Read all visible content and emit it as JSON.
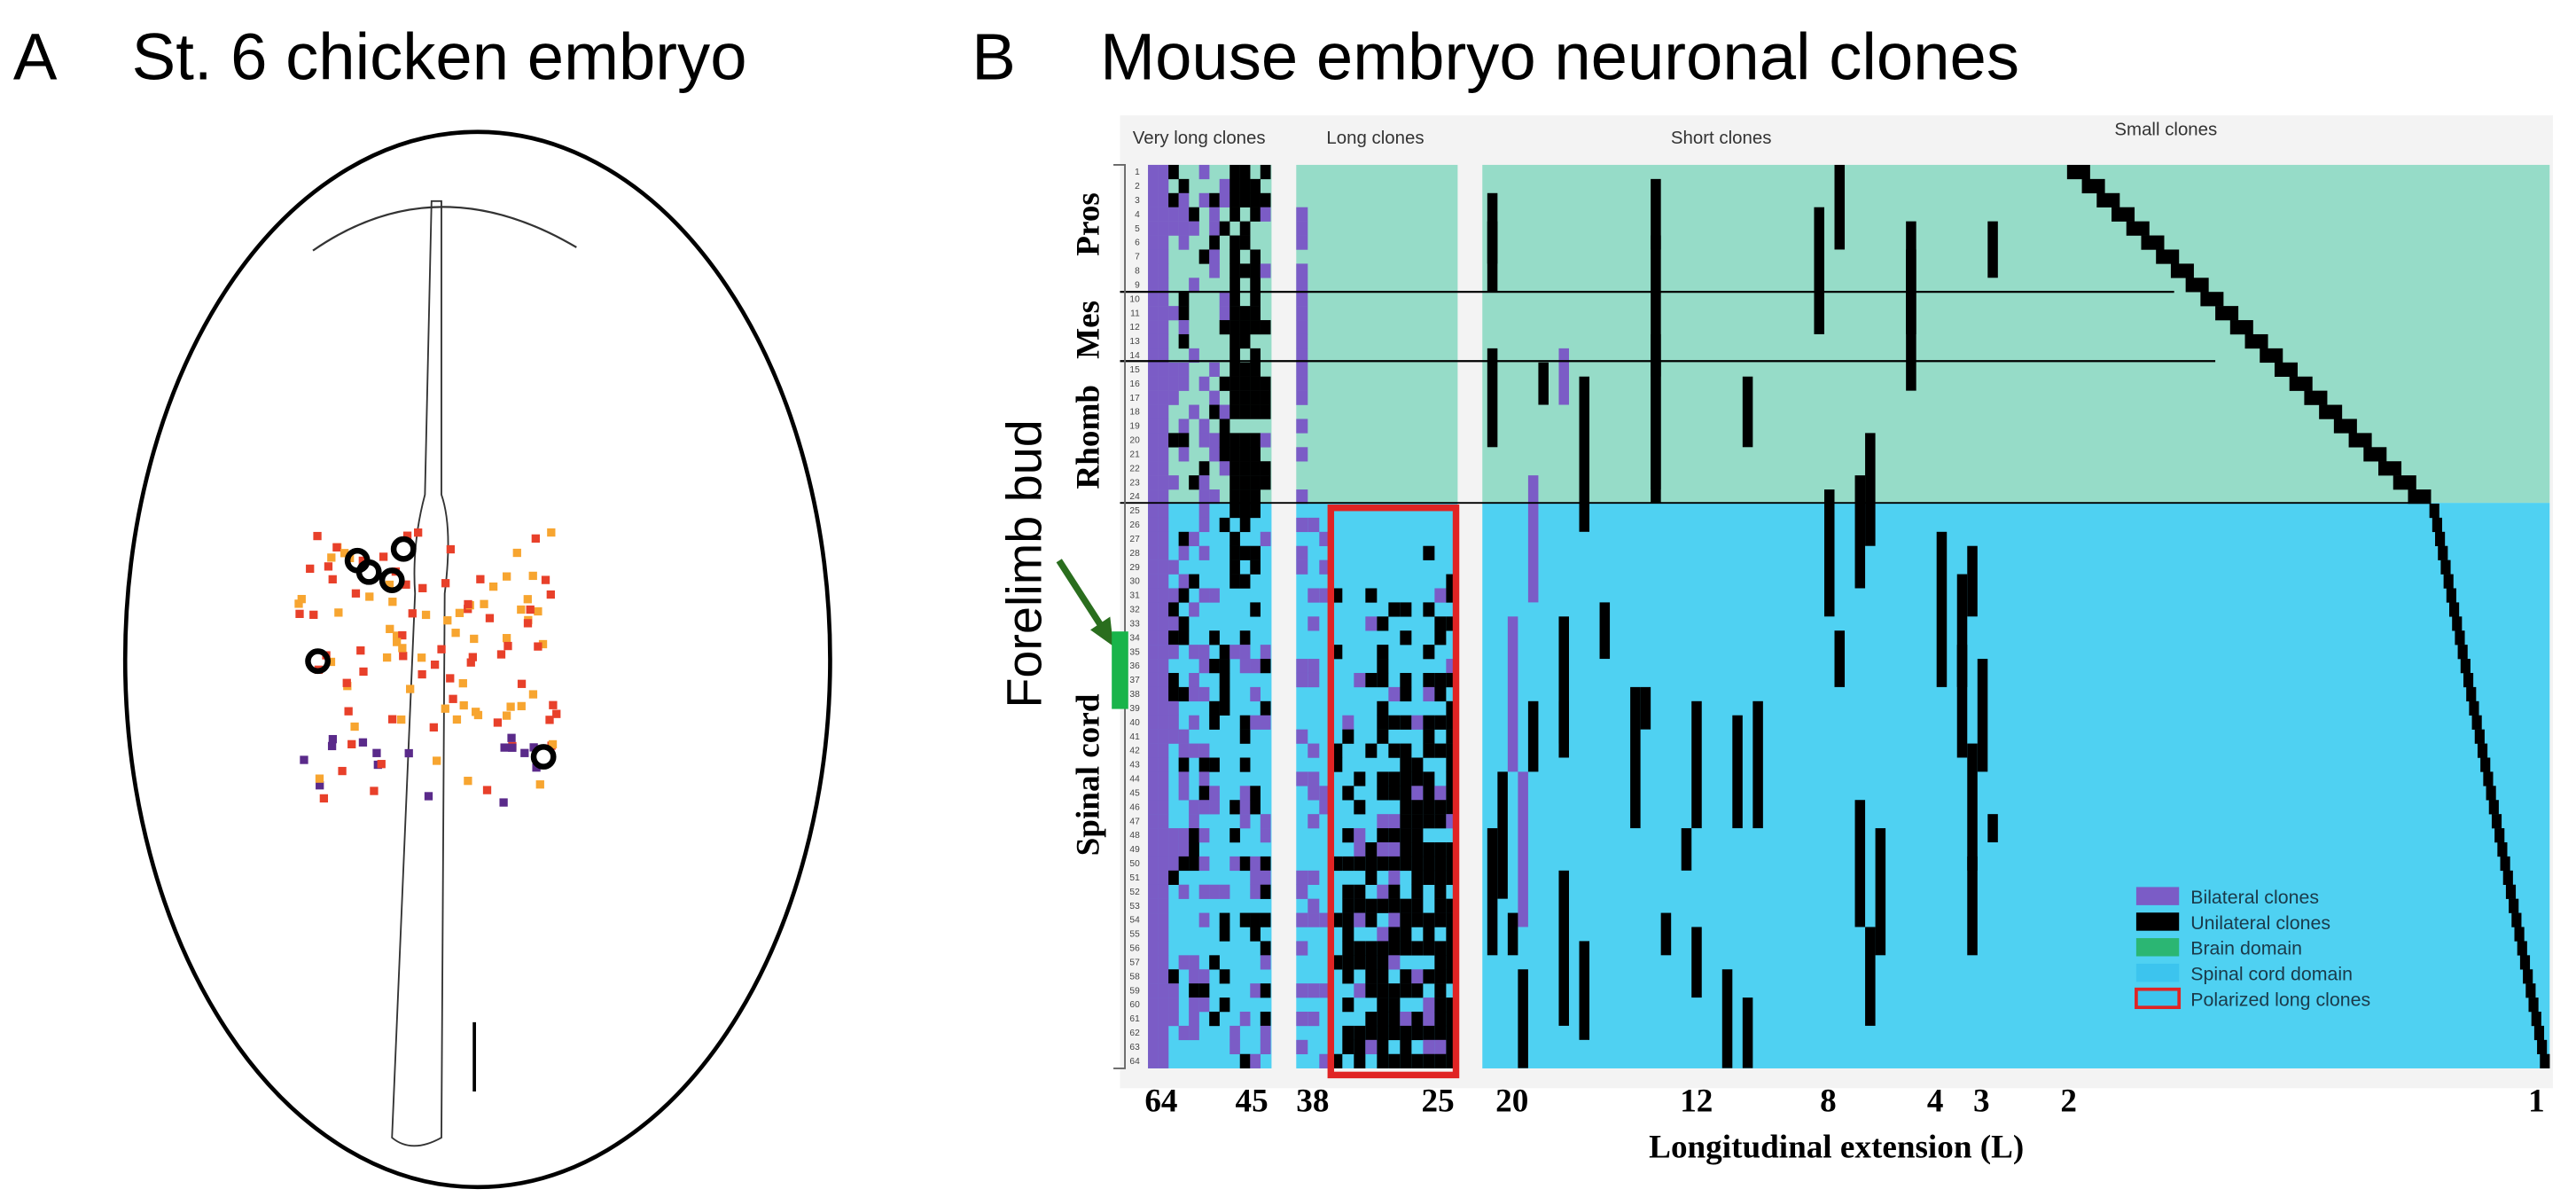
{
  "panel_a": {
    "label": "A",
    "title": "St. 6 chicken embryo"
  },
  "panel_b": {
    "label": "B",
    "title": "Mouse embryo neuronal clones",
    "annotation": "Forelimb bud",
    "group_headers": [
      "Very long clones",
      "Long clones",
      "Short clones",
      "Small clones"
    ],
    "regions": [
      "Pros",
      "Mes",
      "Rhomb",
      "Spinal cord"
    ],
    "row_labels": [
      "1",
      "2",
      "3",
      "4",
      "5",
      "6",
      "7",
      "8",
      "9",
      "10",
      "11",
      "12",
      "13",
      "14",
      "15",
      "16",
      "17",
      "18",
      "19",
      "20",
      "21",
      "22",
      "23",
      "24",
      "25",
      "26",
      "27",
      "28",
      "29",
      "30",
      "31",
      "32",
      "33",
      "34",
      "35",
      "36",
      "37",
      "38",
      "39",
      "40",
      "41",
      "42",
      "43",
      "44",
      "45",
      "46",
      "47",
      "48",
      "49",
      "50",
      "51",
      "52",
      "53",
      "54",
      "55",
      "56",
      "57",
      "58",
      "59",
      "60",
      "61",
      "62",
      "63",
      "64"
    ],
    "x_tick_labels": [
      "64",
      "45",
      "38",
      "25",
      "20",
      "12",
      "8",
      "4",
      "3",
      "2",
      "1"
    ],
    "x_axis_label": "Longitudinal extension (L)",
    "legend": [
      {
        "label": "Bilateral clones",
        "color": "#7b5cc6"
      },
      {
        "label": "Unilateral clones",
        "color": "#000000"
      },
      {
        "label": "Brain domain",
        "color": "#2bb673"
      },
      {
        "label": "Spinal cord domain",
        "color": "#3cc4ee"
      },
      {
        "label": "Polarized long clones",
        "color": "#e02424"
      }
    ]
  }
}
